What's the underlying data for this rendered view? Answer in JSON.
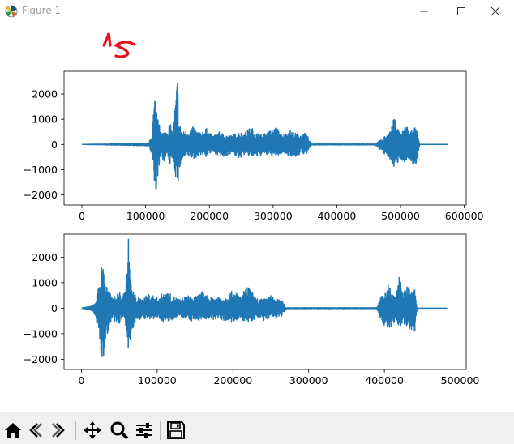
{
  "window": {
    "title": "Figure 1",
    "controls": [
      "minimize-icon",
      "maximize-icon",
      "close-icon"
    ]
  },
  "annotation": {
    "handwritten_text": "15",
    "color": "#e8141b"
  },
  "colors": {
    "line": "#1f77b4",
    "axes": "#000000",
    "toolbar_bg": "#f0f0f0"
  },
  "chart_data": [
    {
      "type": "line",
      "title": "",
      "xlabel": "",
      "ylabel": "",
      "xlim": [
        -28000,
        603000
      ],
      "ylim": [
        -2400,
        2900
      ],
      "xticks": [
        0,
        100000,
        200000,
        300000,
        400000,
        500000,
        600000
      ],
      "xtick_labels": [
        "0",
        "100000",
        "200000",
        "300000",
        "400000",
        "500000",
        "600000"
      ],
      "yticks": [
        -2000,
        -1000,
        0,
        1000,
        2000
      ],
      "ytick_labels": [
        "−2000",
        "−1000",
        "0",
        "1000",
        "2000"
      ],
      "grid": false,
      "series": [
        {
          "description": "audio waveform envelope (sampled peaks)",
          "x": [
            0,
            105000,
            110000,
            113000,
            115000,
            118000,
            121000,
            124000,
            128000,
            133000,
            138000,
            143000,
            146000,
            150000,
            153000,
            158000,
            165000,
            175000,
            185000,
            195000,
            205000,
            215000,
            225000,
            235000,
            245000,
            255000,
            265000,
            275000,
            285000,
            295000,
            305000,
            315000,
            325000,
            335000,
            345000,
            352000,
            360000,
            400000,
            460000,
            480000,
            485000,
            490000,
            495000,
            500000,
            505000,
            510000,
            515000,
            520000,
            525000,
            530000,
            575000
          ],
          "max": [
            0,
            50,
            450,
            1500,
            1900,
            1200,
            800,
            700,
            500,
            600,
            900,
            450,
            1500,
            2750,
            900,
            500,
            550,
            700,
            450,
            650,
            350,
            500,
            400,
            350,
            500,
            450,
            700,
            450,
            400,
            550,
            700,
            350,
            600,
            450,
            400,
            450,
            20,
            20,
            20,
            400,
            600,
            1100,
            700,
            500,
            600,
            900,
            450,
            800,
            600,
            0,
            0
          ],
          "min": [
            0,
            -60,
            -500,
            -1700,
            -2300,
            -1400,
            -900,
            -600,
            -700,
            -500,
            -800,
            -500,
            -1200,
            -1800,
            -1000,
            -600,
            -500,
            -600,
            -400,
            -500,
            -300,
            -450,
            -550,
            -300,
            -600,
            -400,
            -500,
            -500,
            -400,
            -450,
            -500,
            -350,
            -450,
            -500,
            -350,
            -400,
            -20,
            -20,
            -20,
            -550,
            -700,
            -900,
            -800,
            -600,
            -700,
            -650,
            -600,
            -900,
            -750,
            0,
            0
          ]
        }
      ]
    },
    {
      "type": "line",
      "title": "",
      "xlabel": "",
      "ylabel": "",
      "xlim": [
        -23000,
        508000
      ],
      "ylim": [
        -2400,
        2900
      ],
      "xticks": [
        0,
        100000,
        200000,
        300000,
        400000,
        500000
      ],
      "xtick_labels": [
        "0",
        "100000",
        "200000",
        "300000",
        "400000",
        "500000"
      ],
      "yticks": [
        -2000,
        -1000,
        0,
        1000,
        2000
      ],
      "ytick_labels": [
        "−2000",
        "−1000",
        "0",
        "1000",
        "2000"
      ],
      "grid": false,
      "series": [
        {
          "description": "audio waveform envelope (sampled peaks)",
          "x": [
            0,
            15000,
            20000,
            24000,
            28000,
            32000,
            36000,
            41000,
            46000,
            50000,
            54000,
            59000,
            62000,
            66000,
            72000,
            80000,
            90000,
            100000,
            110000,
            120000,
            130000,
            140000,
            150000,
            160000,
            170000,
            180000,
            190000,
            200000,
            210000,
            220000,
            230000,
            240000,
            250000,
            258000,
            265000,
            270000,
            320000,
            390000,
            395000,
            400000,
            405000,
            410000,
            415000,
            420000,
            425000,
            430000,
            435000,
            440000,
            443000,
            483000
          ],
          "max": [
            0,
            100,
            300,
            1200,
            1900,
            1000,
            700,
            400,
            500,
            700,
            450,
            1000,
            2750,
            800,
            500,
            350,
            600,
            400,
            700,
            500,
            350,
            500,
            450,
            650,
            400,
            500,
            450,
            700,
            500,
            900,
            400,
            350,
            500,
            350,
            300,
            20,
            20,
            20,
            400,
            650,
            1000,
            600,
            450,
            1300,
            600,
            900,
            700,
            750,
            0,
            0
          ],
          "min": [
            0,
            -120,
            -400,
            -1500,
            -2300,
            -1200,
            -800,
            -500,
            -700,
            -600,
            -400,
            -800,
            -1900,
            -900,
            -500,
            -400,
            -500,
            -400,
            -600,
            -500,
            -300,
            -450,
            -550,
            -400,
            -500,
            -400,
            -500,
            -600,
            -450,
            -600,
            -400,
            -500,
            -400,
            -350,
            -300,
            -20,
            -20,
            -20,
            -450,
            -700,
            -950,
            -650,
            -500,
            -800,
            -600,
            -700,
            -900,
            -900,
            0,
            0
          ]
        }
      ]
    }
  ],
  "toolbar": {
    "buttons": [
      {
        "name": "home-button",
        "icon": "home-icon"
      },
      {
        "name": "back-button",
        "icon": "back-arrow-icon"
      },
      {
        "name": "forward-button",
        "icon": "forward-arrow-icon"
      },
      {
        "name": "pan-button",
        "icon": "pan-icon"
      },
      {
        "name": "zoom-button",
        "icon": "zoom-icon"
      },
      {
        "name": "configure-subplots-button",
        "icon": "sliders-icon"
      },
      {
        "name": "save-button",
        "icon": "save-icon"
      }
    ]
  }
}
